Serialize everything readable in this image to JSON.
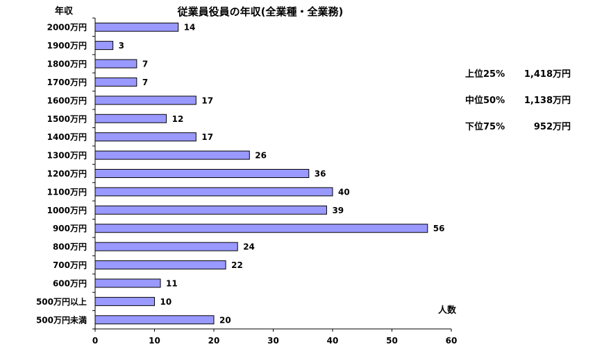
{
  "chart_data": {
    "type": "bar",
    "orientation": "horizontal",
    "title": "従業員役員の年収(全業種・全業務)",
    "ylabel": "年収",
    "xlabel": "人数",
    "categories": [
      "2000万円",
      "1900万円",
      "1800万円",
      "1700万円",
      "1600万円",
      "1500万円",
      "1400万円",
      "1300万円",
      "1200万円",
      "1100万円",
      "1000万円",
      "900万円",
      "800万円",
      "700万円",
      "600万円",
      "500万円以上",
      "500万円未満"
    ],
    "values": [
      14,
      3,
      7,
      7,
      17,
      12,
      17,
      26,
      36,
      40,
      39,
      56,
      24,
      22,
      11,
      10,
      20
    ],
    "xlim": [
      0,
      60
    ],
    "xticks": [
      "0",
      "10",
      "20",
      "30",
      "40",
      "50",
      "60"
    ],
    "grid": false,
    "legend": "none",
    "bar_color": "#9999ff",
    "bar_edge_color": "#000000"
  },
  "stats": [
    {
      "label": "上位25%",
      "value": "1,418万円"
    },
    {
      "label": "中位50%",
      "value": "1,138万円"
    },
    {
      "label": "下位75%",
      "value": "952万円"
    }
  ]
}
